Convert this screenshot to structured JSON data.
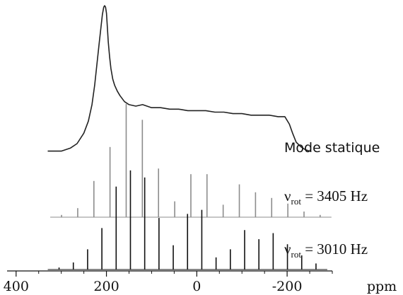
{
  "chart_data": {
    "type": "line",
    "x_axis": {
      "unit": "ppm",
      "range": [
        420,
        -300
      ],
      "reversed": true,
      "ticks": [
        400,
        200,
        0,
        -200
      ],
      "tick_labels": [
        "400",
        "200",
        "0",
        "-200"
      ],
      "minor_tick_step": 50
    },
    "grid": false,
    "series": [
      {
        "name": "Mode statique",
        "kind": "static",
        "color": "#222222",
        "baseline": 0.0,
        "x": [
          330,
          300,
          280,
          265,
          250,
          240,
          232,
          226,
          221,
          216,
          212,
          209,
          206,
          204,
          202,
          200,
          198,
          196,
          193,
          190,
          186,
          182,
          176,
          170,
          160,
          150,
          135,
          120,
          100,
          80,
          60,
          40,
          20,
          0,
          -20,
          -40,
          -60,
          -80,
          -100,
          -120,
          -140,
          -160,
          -180,
          -195,
          -205,
          -212,
          -220,
          -230,
          -240,
          -250
        ],
        "y": [
          0.03,
          0.03,
          0.05,
          0.08,
          0.15,
          0.23,
          0.34,
          0.47,
          0.61,
          0.75,
          0.86,
          0.94,
          0.99,
          1.0,
          0.99,
          0.95,
          0.86,
          0.76,
          0.66,
          0.58,
          0.51,
          0.47,
          0.43,
          0.4,
          0.36,
          0.34,
          0.33,
          0.34,
          0.32,
          0.32,
          0.31,
          0.31,
          0.3,
          0.3,
          0.3,
          0.29,
          0.29,
          0.28,
          0.28,
          0.27,
          0.27,
          0.27,
          0.26,
          0.26,
          0.21,
          0.15,
          0.09,
          0.06,
          0.04,
          0.03
        ]
      },
      {
        "name": "ν_rot = 3405 Hz",
        "label_main": "ν",
        "label_sub": "rot",
        "label_rest": " = 3405 Hz",
        "kind": "sticks",
        "color": "#8c8c8c",
        "baseline": 0.0,
        "peaks_x": [
          299.4,
          263.6,
          227.8,
          192.1,
          156.3,
          120.5,
          84.7,
          48.9,
          13.1,
          -22.6,
          -58.4,
          -94.2,
          -130.0,
          -165.8,
          -201.6,
          -237.4,
          -273.1
        ],
        "peaks_y": [
          0.02,
          0.08,
          0.32,
          0.62,
          1.0,
          0.86,
          0.43,
          0.14,
          0.38,
          0.38,
          0.11,
          0.29,
          0.22,
          0.17,
          0.12,
          0.05,
          0.02
        ]
      },
      {
        "name": "ν_rot = 3010 Hz",
        "label_main": "ν",
        "label_sub": "rot",
        "label_rest": " = 3010 Hz",
        "kind": "sticks",
        "color": "#111111",
        "baseline": 0.0,
        "peaks_x": [
          304.9,
          273.3,
          241.7,
          210.1,
          178.5,
          146.9,
          115.3,
          83.7,
          52.1,
          20.5,
          -11.1,
          -42.7,
          -74.3,
          -105.9,
          -137.5,
          -169.1,
          -200.7,
          -232.3,
          -263.9
        ],
        "peaks_y": [
          0.02,
          0.07,
          0.2,
          0.41,
          0.82,
          0.98,
          0.91,
          0.51,
          0.24,
          0.55,
          0.59,
          0.12,
          0.2,
          0.39,
          0.3,
          0.36,
          0.25,
          0.14,
          0.06
        ]
      }
    ]
  }
}
